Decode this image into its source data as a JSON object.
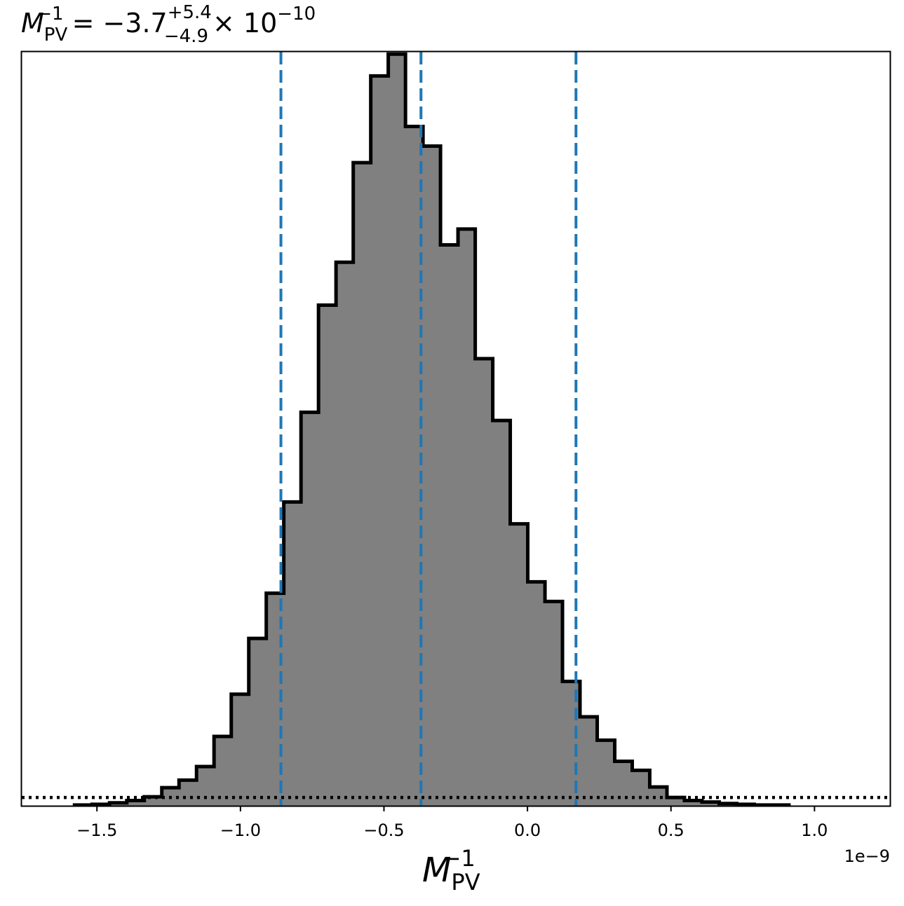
{
  "chart_data": {
    "type": "histogram",
    "title": {
      "symbol": "M",
      "subscript": "PV",
      "superscript": "−1",
      "equals": "=",
      "value": "−3.7",
      "upper_error": "+5.4",
      "lower_error": "−4.9",
      "multiplier": "× 10",
      "multiplier_exponent": "−10"
    },
    "xlabel": {
      "symbol": "M",
      "subscript": "PV",
      "superscript": "−1"
    },
    "x_offset_label": "1e−9",
    "x_unit_scale": 1e-09,
    "xlim": [
      -1.762,
      1.263
    ],
    "ylim": [
      0,
      1.0
    ],
    "x_ticks": [
      -1.5,
      -1.0,
      -0.5,
      0.0,
      0.5,
      1.0
    ],
    "x_tick_labels": [
      "−1.5",
      "−1.0",
      "−0.5",
      "0.0",
      "0.5",
      "1.0"
    ],
    "y_ticks_shown": false,
    "bin_edges": [
      -1.578,
      -1.517,
      -1.456,
      -1.396,
      -1.335,
      -1.274,
      -1.214,
      -1.153,
      -1.092,
      -1.032,
      -0.971,
      -0.91,
      -0.849,
      -0.789,
      -0.728,
      -0.667,
      -0.607,
      -0.546,
      -0.485,
      -0.425,
      -0.364,
      -0.303,
      -0.242,
      -0.182,
      -0.121,
      -0.06,
      0.001,
      0.061,
      0.122,
      0.183,
      0.243,
      0.304,
      0.365,
      0.426,
      0.486,
      0.547,
      0.608,
      0.668,
      0.729,
      0.79,
      0.85,
      0.911
    ],
    "counts": [
      0.001,
      0.002,
      0.004,
      0.007,
      0.012,
      0.024,
      0.034,
      0.052,
      0.092,
      0.148,
      0.222,
      0.282,
      0.403,
      0.522,
      0.664,
      0.721,
      0.853,
      0.968,
      0.997,
      0.901,
      0.875,
      0.744,
      0.765,
      0.593,
      0.511,
      0.374,
      0.297,
      0.271,
      0.165,
      0.118,
      0.087,
      0.059,
      0.047,
      0.025,
      0.011,
      0.007,
      0.005,
      0.003,
      0.002,
      0.001,
      0.001
    ],
    "histogram_fill": "#808080",
    "histogram_edge": "#000000",
    "quantile_lines": [
      {
        "x": -0.859,
        "label": "lower bound"
      },
      {
        "x": -0.371,
        "label": "median"
      },
      {
        "x": 0.169,
        "label": "upper bound"
      }
    ],
    "quantile_line_color": "#1f77b4",
    "quantile_line_style": "dashed",
    "prior_level": 0.011,
    "prior_line_style": "dotted",
    "prior_line_color": "#000000",
    "grid": false,
    "legend": "none"
  }
}
